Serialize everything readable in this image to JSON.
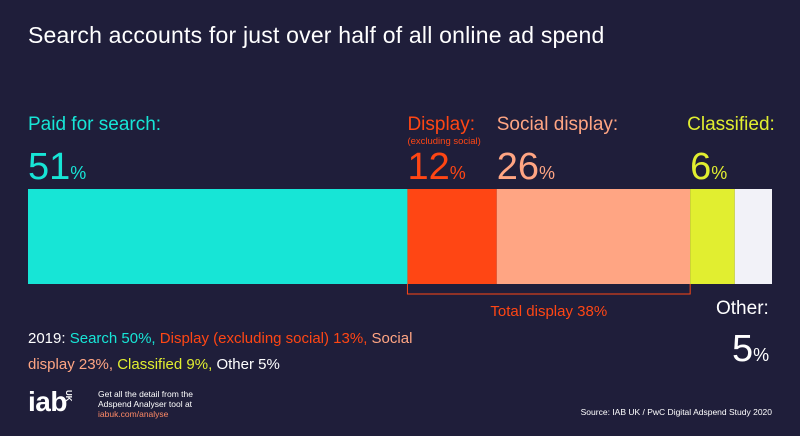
{
  "title": "Search accounts for just over half of all online ad spend",
  "chart_data": {
    "type": "stacked-bar",
    "orientation": "horizontal",
    "unit": "%",
    "total": 100,
    "segments": [
      {
        "key": "search",
        "label": "Paid for search:",
        "sublabel": "",
        "value": 51,
        "color": "#17e5d6"
      },
      {
        "key": "display",
        "label": "Display:",
        "sublabel": "(excluding social)",
        "value": 12,
        "color": "#ff4614"
      },
      {
        "key": "social",
        "label": "Social display:",
        "sublabel": "",
        "value": 26,
        "color": "#ffa583"
      },
      {
        "key": "classified",
        "label": "Classified:",
        "sublabel": "",
        "value": 6,
        "color": "#e1ee30"
      },
      {
        "key": "other",
        "label": "Other:",
        "sublabel": "",
        "value": 5,
        "color": "#f2f2f8"
      }
    ],
    "bracket": {
      "label": "Total display 38%",
      "from": "display",
      "to": "social",
      "color": "#ff4614"
    }
  },
  "comparison_2019": [
    {
      "text": "2019: ",
      "color": "#ffffff"
    },
    {
      "text": "Search 50%, ",
      "color": "#17e5d6"
    },
    {
      "text": "Display (excluding social) 13%, ",
      "color": "#ff4614"
    },
    {
      "text": "Social display 23%, ",
      "color": "#ffa583"
    },
    {
      "text": "Classified 9%, ",
      "color": "#e1ee30"
    },
    {
      "text": "Other 5%",
      "color": "#ffffff"
    }
  ],
  "logo": {
    "brand": "iab",
    "country": "UK",
    "line1": "Get all the detail from the",
    "line2": "Adspend Analyser tool at",
    "link": "iabuk.com/analyse"
  },
  "source": "Source: IAB UK / PwC Digital Adspend Study 2020"
}
